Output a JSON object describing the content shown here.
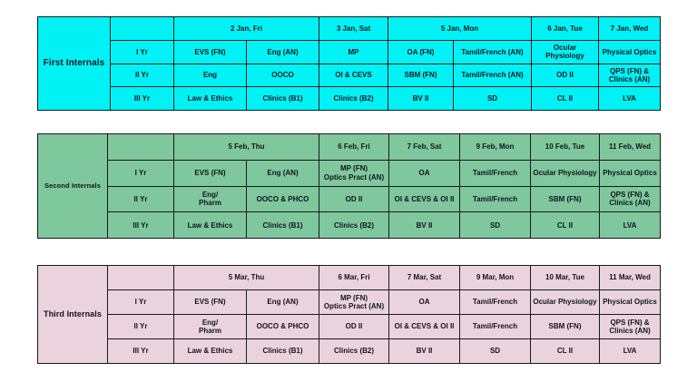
{
  "page": {
    "background": "#ffffff",
    "text_color": "#10141f",
    "border_color": "#161a1f"
  },
  "tables": [
    {
      "id": "first",
      "label": "First Internals",
      "bg": "#00f2f5",
      "dates": [
        {
          "label": "2 Jan, Fri",
          "span": 2
        },
        {
          "label": "3 Jan, Sat",
          "span": 1
        },
        {
          "label": "5 Jan, Mon",
          "span": 2
        },
        {
          "label": "6 Jan, Tue",
          "span": 1
        },
        {
          "label": "7 Jan, Wed",
          "span": 1
        }
      ],
      "rows": [
        {
          "year": "I Yr",
          "cells": [
            "EVS (FN)",
            "Eng (AN)",
            "MP",
            "OA (FN)",
            "Tamil/French (AN)",
            "Ocular Physiology",
            "Physical Optics"
          ]
        },
        {
          "year": "II Yr",
          "cells": [
            "Eng",
            "OOCO",
            "OI & CEVS",
            "SBM (FN)",
            "Tamil/French (AN)",
            "OD II",
            "QPS (FN) &\nClinics (AN)"
          ]
        },
        {
          "year": "III Yr",
          "cells": [
            "Law & Ethics",
            "Clinics (B1)",
            "Clinics (B2)",
            "BV II",
            "SD",
            "CL II",
            "LVA"
          ]
        }
      ]
    },
    {
      "id": "second",
      "label": "Second Internals",
      "bg": "#7fc79c",
      "dates": [
        {
          "label": "5 Feb, Thu",
          "span": 2
        },
        {
          "label": "6 Feb, Fri",
          "span": 1
        },
        {
          "label": "7 Feb, Sat",
          "span": 1
        },
        {
          "label": "9 Feb, Mon",
          "span": 1
        },
        {
          "label": "10 Feb, Tue",
          "span": 1
        },
        {
          "label": "11 Feb, Wed",
          "span": 1
        }
      ],
      "rows": [
        {
          "year": "I Yr",
          "cells": [
            "EVS (FN)",
            "Eng (AN)",
            "MP (FN)\nOptics Pract (AN)",
            "OA",
            "Tamil/French",
            "Ocular Physiology",
            "Physical Optics"
          ]
        },
        {
          "year": "II Yr",
          "cells": [
            "Eng/\nPharm",
            "OOCO & PHCO",
            "OD II",
            "OI & CEVS & OI II",
            "Tamil/French",
            "SBM (FN)",
            "QPS (FN) &\nClinics (AN)"
          ]
        },
        {
          "year": "III Yr",
          "cells": [
            "Law & Ethics",
            "Clinics (B1)",
            "Clinics (B2)",
            "BV II",
            "SD",
            "CL II",
            "LVA"
          ]
        }
      ]
    },
    {
      "id": "third",
      "label": "Third Internals",
      "bg": "#ead3dd",
      "dates": [
        {
          "label": "5 Mar, Thu",
          "span": 2
        },
        {
          "label": "6 Mar, Fri",
          "span": 1
        },
        {
          "label": "7 Mar, Sat",
          "span": 1
        },
        {
          "label": "9 Mar, Mon",
          "span": 1
        },
        {
          "label": "10 Mar, Tue",
          "span": 1
        },
        {
          "label": "11 Mar, Wed",
          "span": 1
        }
      ],
      "rows": [
        {
          "year": "I Yr",
          "cells": [
            "EVS (FN)",
            "Eng (AN)",
            "MP (FN)\nOptics Pract (AN)",
            "OA",
            "Tamil/French",
            "Ocular Physiology",
            "Physical Optics"
          ]
        },
        {
          "year": "II Yr",
          "cells": [
            "Eng/\nPharm",
            "OOCO & PHCO",
            "OD II",
            "OI & CEVS & OI II",
            "Tamil/French",
            "SBM (FN)",
            "QPS (FN) &\nClinics (AN)"
          ]
        },
        {
          "year": "III Yr",
          "cells": [
            "Law & Ethics",
            "Clinics (B1)",
            "Clinics (B2)",
            "BV II",
            "SD",
            "CL II",
            "LVA"
          ]
        }
      ]
    }
  ]
}
